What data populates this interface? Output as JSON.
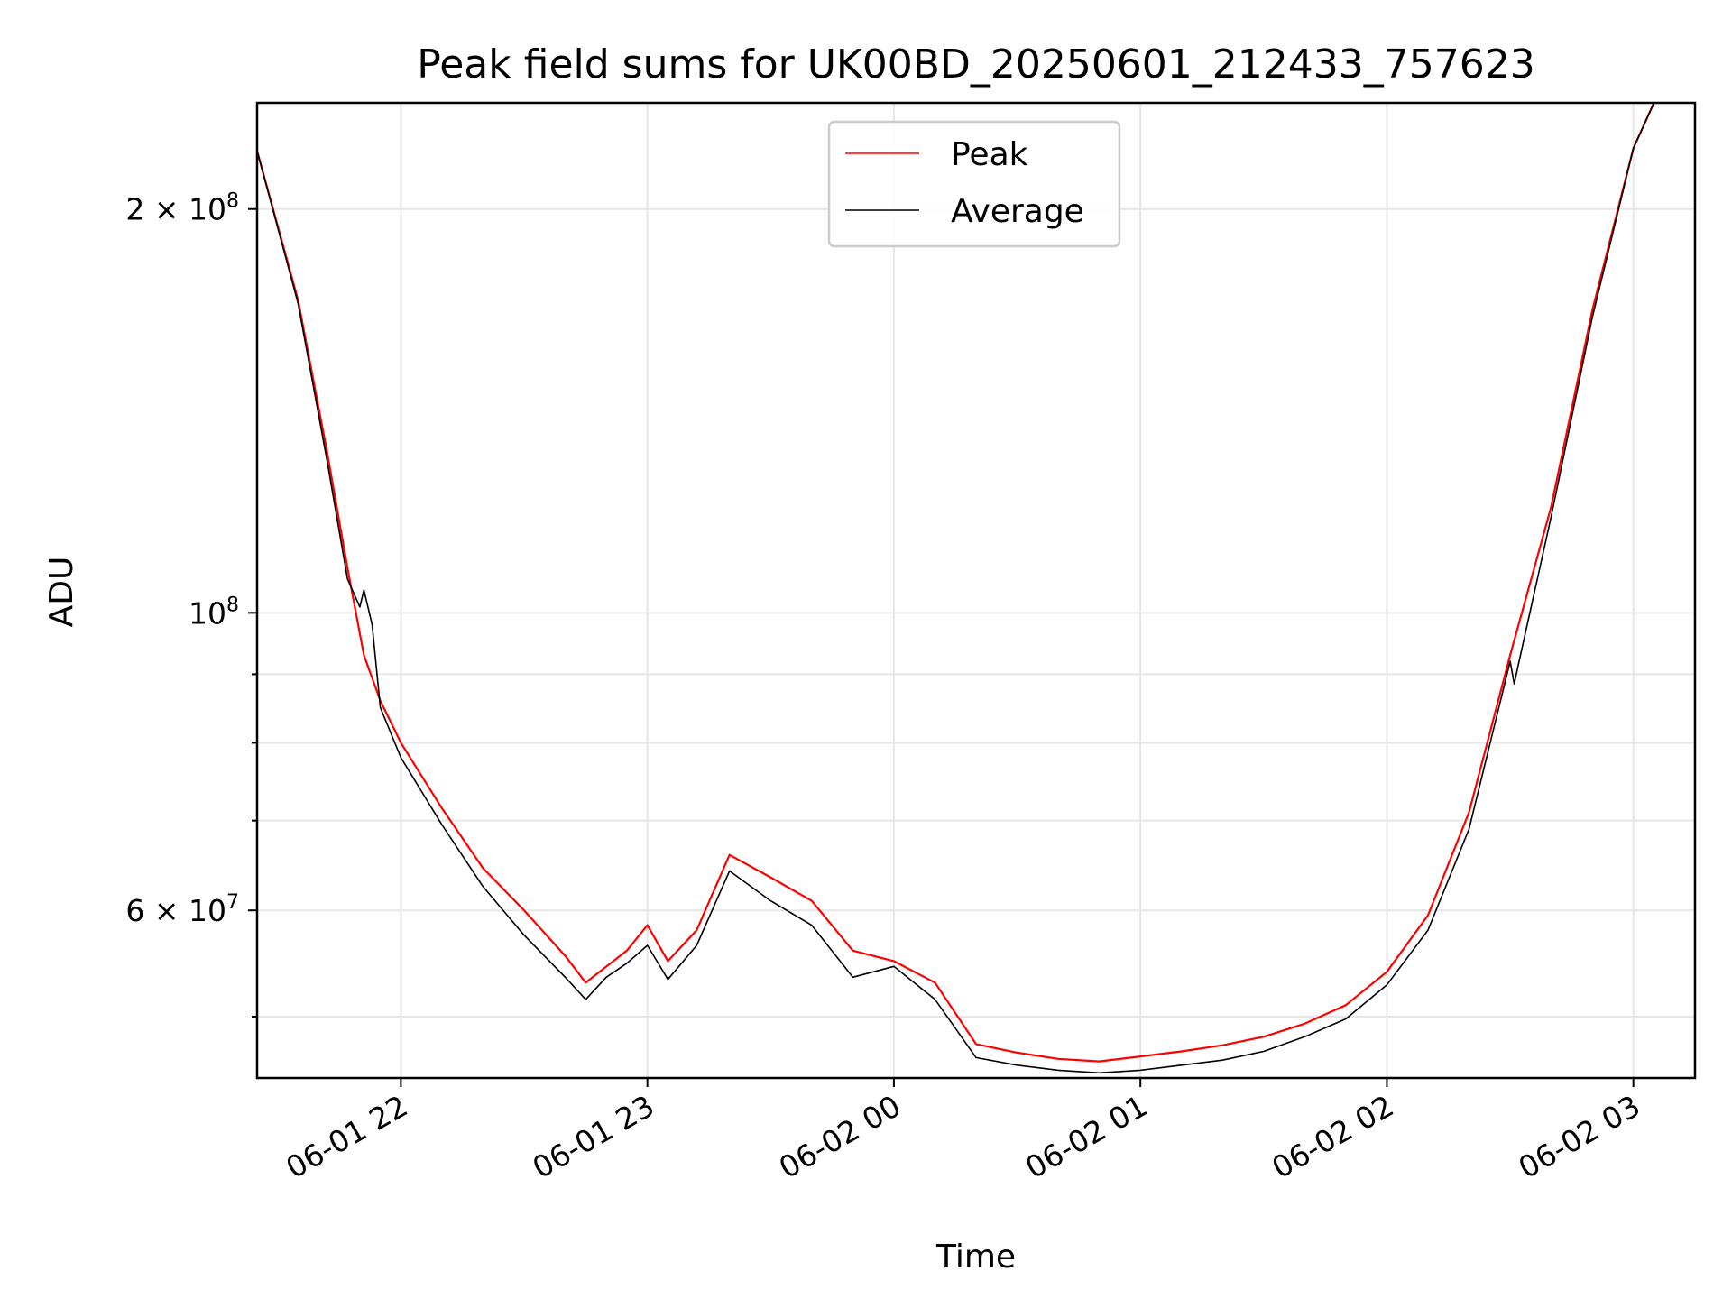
{
  "chart_data": {
    "type": "line",
    "title": "Peak field sums for UK00BD_20250601_212433_757623",
    "xlabel": "Time",
    "ylabel": "ADU",
    "y_scale": "log",
    "ylim": [
      45000000,
      240000000
    ],
    "xlim": [
      "2025-06-01 21:25",
      "2025-06-02 03:15"
    ],
    "x_ticks": [
      {
        "value": "2025-06-01 22:00",
        "label": "06-01 22"
      },
      {
        "value": "2025-06-01 23:00",
        "label": "06-01 23"
      },
      {
        "value": "2025-06-02 00:00",
        "label": "06-02 00"
      },
      {
        "value": "2025-06-02 01:00",
        "label": "06-02 01"
      },
      {
        "value": "2025-06-02 02:00",
        "label": "06-02 02"
      },
      {
        "value": "2025-06-02 03:00",
        "label": "06-02 03"
      }
    ],
    "y_major_ticks": [
      {
        "value": 60000000,
        "mantissa": "6",
        "base": "10",
        "exp": "7"
      },
      {
        "value": 100000000,
        "mantissa": "",
        "base": "10",
        "exp": "8"
      },
      {
        "value": 200000000,
        "mantissa": "2",
        "base": "10",
        "exp": "8"
      }
    ],
    "y_minor_ticks": [
      50000000,
      70000000,
      80000000,
      90000000
    ],
    "grid": true,
    "legend_position": "upper center",
    "series": [
      {
        "name": "Peak",
        "color": "#ff0000",
        "x": [
          "2025-06-01 21:25",
          "2025-06-01 21:35",
          "2025-06-01 21:42",
          "2025-06-01 21:47",
          "2025-06-01 21:51",
          "2025-06-01 21:55",
          "2025-06-01 22:00",
          "2025-06-01 22:10",
          "2025-06-01 22:20",
          "2025-06-01 22:30",
          "2025-06-01 22:40",
          "2025-06-01 22:45",
          "2025-06-01 22:55",
          "2025-06-01 23:00",
          "2025-06-01 23:05",
          "2025-06-01 23:12",
          "2025-06-01 23:20",
          "2025-06-01 23:30",
          "2025-06-01 23:40",
          "2025-06-01 23:50",
          "2025-06-02 00:00",
          "2025-06-02 00:10",
          "2025-06-02 00:20",
          "2025-06-02 00:30",
          "2025-06-02 00:40",
          "2025-06-02 00:50",
          "2025-06-02 01:00",
          "2025-06-02 01:10",
          "2025-06-02 01:20",
          "2025-06-02 01:30",
          "2025-06-02 01:40",
          "2025-06-02 01:50",
          "2025-06-02 02:00",
          "2025-06-02 02:10",
          "2025-06-02 02:20",
          "2025-06-02 02:30",
          "2025-06-02 02:40",
          "2025-06-02 02:50",
          "2025-06-02 03:00",
          "2025-06-02 03:05"
        ],
        "values": [
          221000000,
          171000000,
          132000000,
          108000000,
          93000000,
          86000000,
          80000000,
          71500000,
          64500000,
          60000000,
          55500000,
          53000000,
          56000000,
          58500000,
          55000000,
          58000000,
          66000000,
          63500000,
          61000000,
          56000000,
          55000000,
          53000000,
          47700000,
          47000000,
          46500000,
          46300000,
          46700000,
          47100000,
          47600000,
          48300000,
          49400000,
          51000000,
          54000000,
          59500000,
          71000000,
          93000000,
          120000000,
          168000000,
          222000000,
          240000000
        ]
      },
      {
        "name": "Average",
        "color": "#000000",
        "x": [
          "2025-06-01 21:25",
          "2025-06-01 21:35",
          "2025-06-01 21:42",
          "2025-06-01 21:47",
          "2025-06-01 21:50",
          "2025-06-01 21:51",
          "2025-06-01 21:53",
          "2025-06-01 21:55",
          "2025-06-01 22:00",
          "2025-06-01 22:10",
          "2025-06-01 22:20",
          "2025-06-01 22:30",
          "2025-06-01 22:40",
          "2025-06-01 22:45",
          "2025-06-01 22:50",
          "2025-06-01 22:55",
          "2025-06-01 23:00",
          "2025-06-01 23:05",
          "2025-06-01 23:12",
          "2025-06-01 23:20",
          "2025-06-01 23:30",
          "2025-06-01 23:40",
          "2025-06-01 23:50",
          "2025-06-02 00:00",
          "2025-06-02 00:10",
          "2025-06-02 00:20",
          "2025-06-02 00:30",
          "2025-06-02 00:40",
          "2025-06-02 00:50",
          "2025-06-02 01:00",
          "2025-06-02 01:10",
          "2025-06-02 01:20",
          "2025-06-02 01:30",
          "2025-06-02 01:40",
          "2025-06-02 01:50",
          "2025-06-02 02:00",
          "2025-06-02 02:10",
          "2025-06-02 02:20",
          "2025-06-02 02:30",
          "2025-06-02 02:31",
          "2025-06-02 02:32",
          "2025-06-02 02:40",
          "2025-06-02 02:50",
          "2025-06-02 03:00",
          "2025-06-02 03:05"
        ],
        "values": [
          221000000,
          170000000,
          130000000,
          106000000,
          101000000,
          104000000,
          98000000,
          85000000,
          78000000,
          69500000,
          62500000,
          57500000,
          53500000,
          51500000,
          53500000,
          54800000,
          56500000,
          53300000,
          56500000,
          64200000,
          61000000,
          58500000,
          53500000,
          54500000,
          51500000,
          46600000,
          46000000,
          45600000,
          45400000,
          45600000,
          46000000,
          46400000,
          47100000,
          48300000,
          49800000,
          52800000,
          58000000,
          69000000,
          92000000,
          88500000,
          91500000,
          118000000,
          166000000,
          222000000,
          240000000
        ]
      }
    ]
  }
}
